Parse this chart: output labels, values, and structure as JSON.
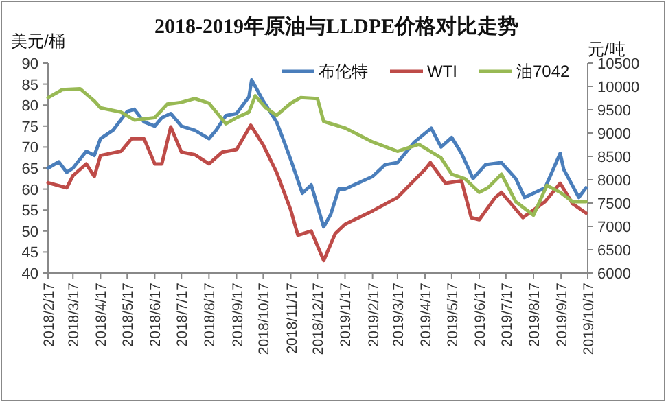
{
  "chart_data": {
    "type": "line",
    "title": "2018-2019年原油与LLDPE价格对比走势",
    "ylabel": "美元/桶",
    "y2label": "元/吨",
    "legend": "top right",
    "grid": false,
    "marker": "none",
    "line_style": "solid",
    "xlim": [
      "2018-02-17",
      "2019-10-17"
    ],
    "xticks": [
      {
        "value": "2018-02-17",
        "label": "2018/2/17"
      },
      {
        "value": "2018-03-17",
        "label": "2018/3/17"
      },
      {
        "value": "2018-04-17",
        "label": "2018/4/17"
      },
      {
        "value": "2018-05-17",
        "label": "2018/5/17"
      },
      {
        "value": "2018-06-17",
        "label": "2018/6/17"
      },
      {
        "value": "2018-07-17",
        "label": "2018/7/17"
      },
      {
        "value": "2018-08-17",
        "label": "2018/8/17"
      },
      {
        "value": "2018-09-17",
        "label": "2018/9/17"
      },
      {
        "value": "2018-10-17",
        "label": "2018/10/17"
      },
      {
        "value": "2018-11-17",
        "label": "2018/11/17"
      },
      {
        "value": "2018-12-17",
        "label": "2018/12/17"
      },
      {
        "value": "2019-01-17",
        "label": "2019/1/17"
      },
      {
        "value": "2019-02-17",
        "label": "2019/2/17"
      },
      {
        "value": "2019-03-17",
        "label": "2019/3/17"
      },
      {
        "value": "2019-04-17",
        "label": "2019/4/17"
      },
      {
        "value": "2019-05-17",
        "label": "2019/5/17"
      },
      {
        "value": "2019-06-17",
        "label": "2019/6/17"
      },
      {
        "value": "2019-07-17",
        "label": "2019/7/17"
      },
      {
        "value": "2019-08-17",
        "label": "2019/8/17"
      },
      {
        "value": "2019-09-17",
        "label": "2019/9/17"
      },
      {
        "value": "2019-10-17",
        "label": "2019/10/17"
      }
    ],
    "ylim": [
      40,
      90
    ],
    "yticks": [
      40,
      45,
      50,
      55,
      60,
      65,
      70,
      75,
      80,
      85,
      90
    ],
    "y2lim": [
      6000,
      10500
    ],
    "y2ticks": [
      6000,
      6500,
      7000,
      7500,
      8000,
      8500,
      9000,
      9500,
      10000,
      10500
    ],
    "series": [
      {
        "name": "布伦特",
        "color": "#4a7ebb",
        "x": [
          "2018-02-17",
          "2018-03-01",
          "2018-03-10",
          "2018-03-17",
          "2018-04-01",
          "2018-04-10",
          "2018-04-17",
          "2018-05-01",
          "2018-05-17",
          "2018-05-25",
          "2018-06-05",
          "2018-06-17",
          "2018-06-25",
          "2018-07-05",
          "2018-07-17",
          "2018-08-01",
          "2018-08-17",
          "2018-08-25",
          "2018-09-05",
          "2018-09-17",
          "2018-10-01",
          "2018-10-04",
          "2018-10-17",
          "2018-11-01",
          "2018-11-10",
          "2018-11-17",
          "2018-11-30",
          "2018-12-10",
          "2018-12-24",
          "2019-01-01",
          "2019-01-10",
          "2019-01-17",
          "2019-02-17",
          "2019-03-03",
          "2019-03-17",
          "2019-04-05",
          "2019-04-24",
          "2019-05-05",
          "2019-05-17",
          "2019-05-28",
          "2019-06-10",
          "2019-06-24",
          "2019-07-12",
          "2019-07-28",
          "2019-08-07",
          "2019-08-30",
          "2019-09-16",
          "2019-09-20",
          "2019-10-07",
          "2019-10-15"
        ],
        "values": [
          65,
          66.5,
          64,
          65,
          69,
          68,
          72,
          74,
          78.5,
          79,
          76,
          75,
          77,
          78,
          75,
          74,
          72,
          74,
          77.5,
          78,
          82,
          86,
          81,
          76,
          71,
          67,
          59,
          61,
          51,
          54,
          60,
          60,
          63,
          65.8,
          66.3,
          71.2,
          74.5,
          70,
          72.3,
          68.5,
          62.5,
          65.8,
          66.3,
          62.5,
          58,
          60.3,
          68.5,
          64.7,
          58,
          60.3
        ]
      },
      {
        "name": "WTI",
        "color": "#be4b48",
        "x": [
          "2018-02-17",
          "2018-03-10",
          "2018-03-17",
          "2018-04-01",
          "2018-04-10",
          "2018-04-17",
          "2018-05-10",
          "2018-05-22",
          "2018-06-05",
          "2018-06-17",
          "2018-06-25",
          "2018-07-05",
          "2018-07-17",
          "2018-08-01",
          "2018-08-17",
          "2018-09-01",
          "2018-09-17",
          "2018-10-03",
          "2018-10-17",
          "2018-11-01",
          "2018-11-17",
          "2018-11-25",
          "2018-12-10",
          "2018-12-24",
          "2019-01-06",
          "2019-01-17",
          "2019-02-17",
          "2019-03-17",
          "2019-04-17",
          "2019-04-23",
          "2019-05-10",
          "2019-05-28",
          "2019-06-08",
          "2019-06-17",
          "2019-07-05",
          "2019-07-12",
          "2019-08-05",
          "2019-08-30",
          "2019-09-16",
          "2019-09-30",
          "2019-10-15"
        ],
        "values": [
          61.5,
          60.3,
          63.2,
          66,
          63,
          68,
          69,
          72,
          72,
          66,
          66,
          74.8,
          68.8,
          68.2,
          66,
          68.8,
          69.4,
          75.2,
          70.5,
          64,
          55,
          49,
          50,
          43,
          49.4,
          51.6,
          54.8,
          58,
          64.7,
          66.3,
          61.4,
          62,
          53.2,
          52.7,
          58,
          59.2,
          53.2,
          57,
          61.4,
          56.5,
          54.3
        ]
      },
      {
        "name": "油7042",
        "color": "#98b954",
        "axis": "y2",
        "x": [
          "2018-02-17",
          "2018-03-05",
          "2018-03-25",
          "2018-04-10",
          "2018-04-17",
          "2018-05-10",
          "2018-05-25",
          "2018-06-17",
          "2018-07-01",
          "2018-07-17",
          "2018-08-01",
          "2018-08-17",
          "2018-09-05",
          "2018-09-17",
          "2018-10-01",
          "2018-10-08",
          "2018-10-20",
          "2018-11-01",
          "2018-11-17",
          "2018-11-28",
          "2018-12-17",
          "2018-12-24",
          "2019-01-17",
          "2019-02-17",
          "2019-03-17",
          "2019-04-10",
          "2019-05-05",
          "2019-05-17",
          "2019-06-01",
          "2019-06-17",
          "2019-06-27",
          "2019-07-12",
          "2019-07-28",
          "2019-08-17",
          "2019-09-01",
          "2019-09-16",
          "2019-09-30",
          "2019-10-15"
        ],
        "values": [
          9760,
          9930,
          9950,
          9690,
          9540,
          9450,
          9280,
          9330,
          9620,
          9660,
          9740,
          9640,
          9200,
          9330,
          9450,
          9800,
          9540,
          9380,
          9640,
          9760,
          9740,
          9250,
          9110,
          8810,
          8610,
          8760,
          8470,
          8120,
          8020,
          7730,
          7830,
          8120,
          7530,
          7240,
          7880,
          7730,
          7530,
          7530
        ]
      }
    ]
  }
}
